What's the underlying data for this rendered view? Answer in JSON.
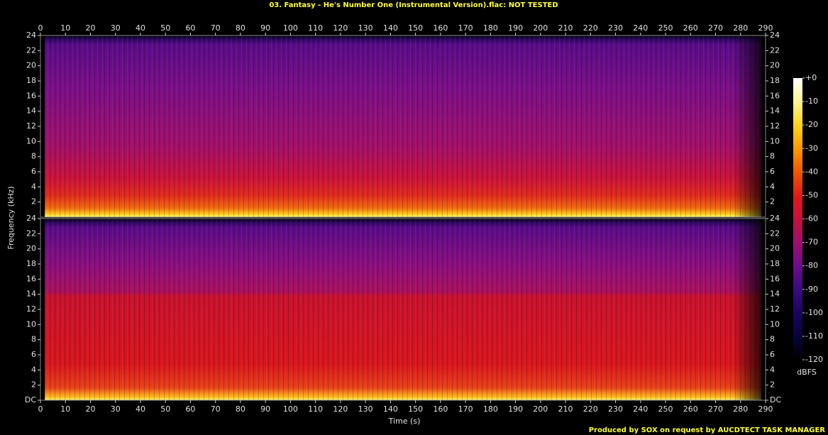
{
  "chart_data": {
    "type": "spectrogram",
    "title": "03. Fantasy - He's Number One (Instrumental Version).flac: NOT TESTED",
    "xlabel": "Time (s)",
    "ylabel": "Frequency (kHz)",
    "xlim": [
      0,
      290
    ],
    "xticks": [
      0,
      10,
      20,
      30,
      40,
      50,
      60,
      70,
      80,
      90,
      100,
      110,
      120,
      130,
      140,
      150,
      160,
      170,
      180,
      190,
      200,
      210,
      220,
      230,
      240,
      250,
      260,
      270,
      280,
      290
    ],
    "ylim": [
      0,
      24
    ],
    "yticks": [
      {
        "value": 0,
        "label": "DC"
      },
      2,
      4,
      6,
      8,
      10,
      12,
      14,
      16,
      18,
      20,
      22,
      24
    ],
    "colorbar": {
      "label": "dBFS",
      "lim": [
        -120,
        0
      ],
      "ticks": [
        {
          "value": 0,
          "label": "+0"
        },
        -10,
        -20,
        -30,
        -40,
        -50,
        -60,
        -70,
        -80,
        -90,
        -100,
        -110,
        -120
      ]
    },
    "footer": "Produced by SOX on request by AUCDTECT TASK MANAGER"
  }
}
